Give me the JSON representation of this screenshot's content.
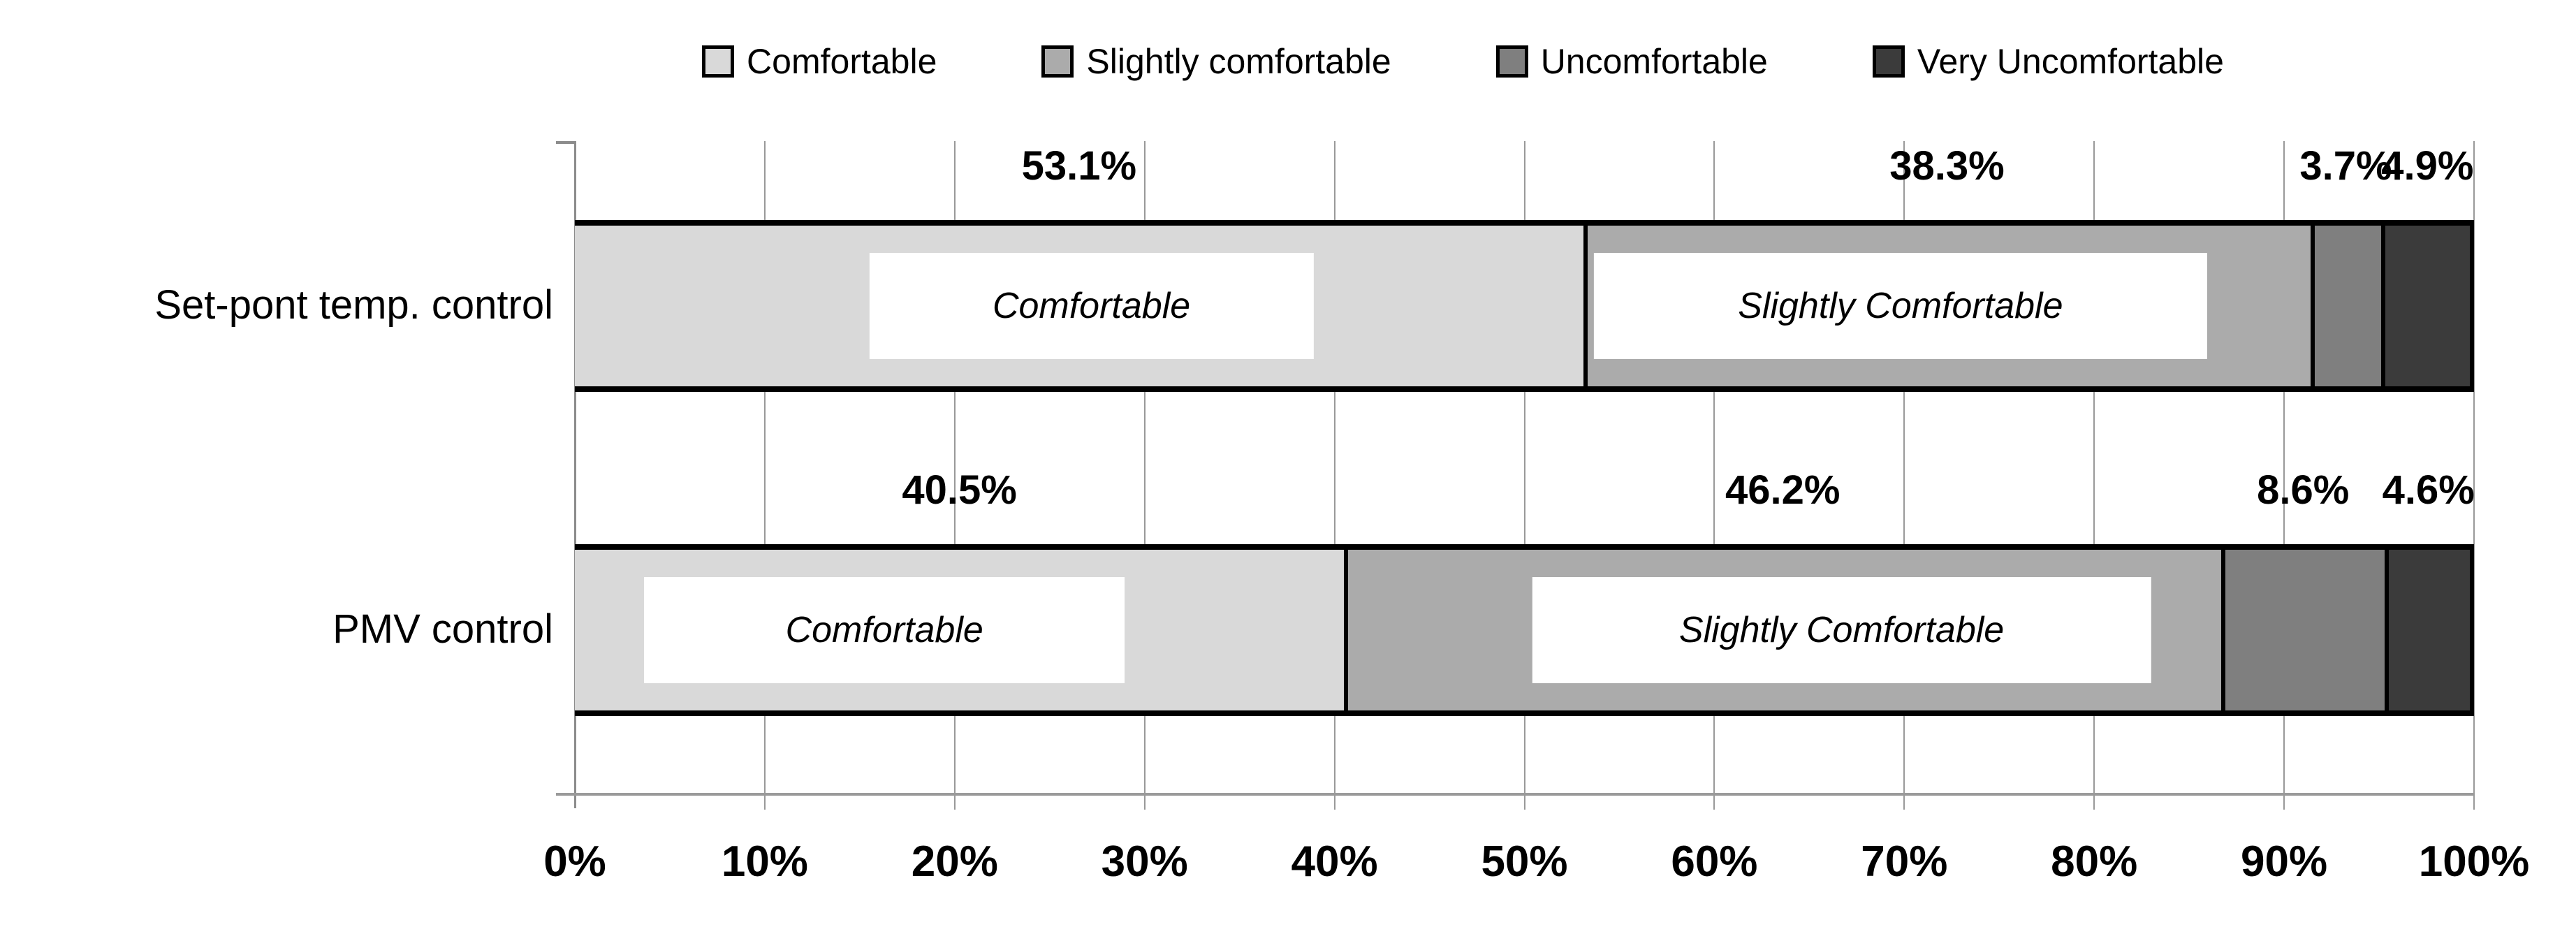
{
  "chart_data": {
    "type": "bar",
    "orientation": "horizontal",
    "stacked": true,
    "title": "",
    "xlabel": "",
    "ylabel": "",
    "xlim": [
      0,
      100
    ],
    "grid": true,
    "legend_position": "top",
    "categories": [
      "Set-pont temp. control",
      "PMV control"
    ],
    "series": [
      {
        "name": "Comfortable",
        "color": "#D9D9D9",
        "values": [
          53.1,
          40.5
        ]
      },
      {
        "name": "Slightly comfortable",
        "color": "#ABABAB",
        "values": [
          38.3,
          46.2
        ]
      },
      {
        "name": "Uncomfortable",
        "color": "#7F7F7F",
        "values": [
          3.7,
          8.6
        ]
      },
      {
        "name": "Very Uncomfortable",
        "color": "#3B3B3B",
        "values": [
          4.9,
          4.6
        ]
      }
    ],
    "data_labels": [
      [
        "53.1%",
        "38.3%",
        "3.7%",
        "4.9%"
      ],
      [
        "40.5%",
        "46.2%",
        "8.6%",
        "4.6%"
      ]
    ],
    "segment_overlays": [
      [
        {
          "text": "Comfortable",
          "center_pct": 27.2,
          "width_pct": 23.4
        },
        {
          "text": "Slightly Comfortable",
          "center_pct": 69.8,
          "width_pct": 32.3
        }
      ],
      [
        {
          "text": "Comfortable",
          "center_pct": 16.3,
          "width_pct": 25.3
        },
        {
          "text": "Slightly Comfortable",
          "center_pct": 66.7,
          "width_pct": 32.6
        }
      ]
    ],
    "x_ticks": [
      "0%",
      "10%",
      "20%",
      "30%",
      "40%",
      "50%",
      "60%",
      "70%",
      "80%",
      "90%",
      "100%"
    ],
    "colors": {
      "grid": "#999999",
      "axis": "#8C8C8C",
      "bar_border": "#000000",
      "text": "#000000",
      "background": "#FFFFFF"
    }
  },
  "legend": {
    "items": [
      {
        "label": "Comfortable",
        "color": "#D9D9D9"
      },
      {
        "label": "Slightly comfortable",
        "color": "#ABABAB"
      },
      {
        "label": "Uncomfortable",
        "color": "#7F7F7F"
      },
      {
        "label": "Very Uncomfortable",
        "color": "#3B3B3B"
      }
    ]
  }
}
